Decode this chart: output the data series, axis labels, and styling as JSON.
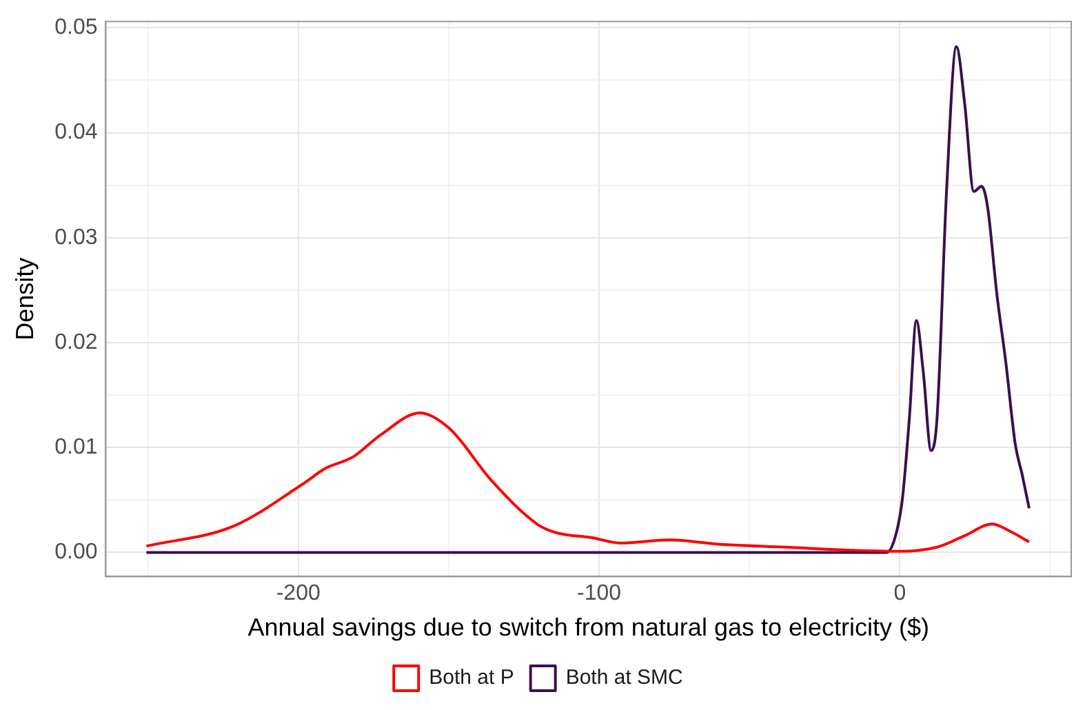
{
  "chart_data": {
    "type": "line",
    "xlabel": "Annual savings due to switch from natural gas to electricity ($)",
    "ylabel": "Density",
    "xlim": [
      -264,
      57
    ],
    "ylim": [
      -0.0023,
      0.0506
    ],
    "xticks": [
      {
        "value": -250,
        "label": null
      },
      -200,
      {
        "value": -150,
        "label": null
      },
      -100,
      {
        "value": -50,
        "label": null
      },
      0,
      {
        "value": 50,
        "label": null
      }
    ],
    "yticks": [
      {
        "value": 0,
        "label": "0.00"
      },
      {
        "value": 0.005,
        "label": null
      },
      {
        "value": 0.01,
        "label": "0.01"
      },
      {
        "value": 0.015,
        "label": null
      },
      {
        "value": 0.02,
        "label": "0.02"
      },
      {
        "value": 0.025,
        "label": null
      },
      {
        "value": 0.03,
        "label": "0.03"
      },
      {
        "value": 0.035,
        "label": null
      },
      {
        "value": 0.04,
        "label": "0.04"
      },
      {
        "value": 0.045,
        "label": null
      },
      {
        "value": 0.05,
        "label": "0.05"
      }
    ],
    "grid": true,
    "legend": "bottom",
    "marker": "none",
    "line_style": "solid",
    "series": [
      {
        "name": "Both at P",
        "color": "#ff0000",
        "x": [
          -250.5,
          -221.6,
          -198.6,
          -191,
          -181.8,
          -172.6,
          -159.6,
          -149.7,
          -135.9,
          -120.6,
          -114.5,
          -102.3,
          -93.1,
          -76.3,
          -61,
          -38,
          -15.1,
          0,
          12.4,
          21.6,
          30.7,
          36.8,
          43
        ],
        "values": [
          0.0006,
          0.0025,
          0.0065,
          0.008,
          0.0091,
          0.0112,
          0.0133,
          0.0118,
          0.0069,
          0.0027,
          0.0019,
          0.0014,
          0.0009,
          0.0012,
          0.0008,
          0.0005,
          0.0002,
          0.0001,
          0.0005,
          0.0016,
          0.0027,
          0.002,
          0.001
        ]
      },
      {
        "name": "Both at SMC",
        "color": "#3b0f4f",
        "x": [
          -250.5,
          -150,
          -50,
          -4.4,
          -1.4,
          0.9,
          3.2,
          5.5,
          7.8,
          10.4,
          12.4,
          15.5,
          18.8,
          21.6,
          24.6,
          27.2,
          29.2,
          32.2,
          35.3,
          38.4,
          40.7,
          43
        ],
        "values": [
          0,
          0,
          0,
          0,
          0.0016,
          0.0052,
          0.0129,
          0.0221,
          0.0172,
          0.0097,
          0.0129,
          0.0342,
          0.0482,
          0.0427,
          0.0344,
          0.0349,
          0.0329,
          0.0248,
          0.018,
          0.0103,
          0.0074,
          0.0042
        ]
      }
    ]
  }
}
